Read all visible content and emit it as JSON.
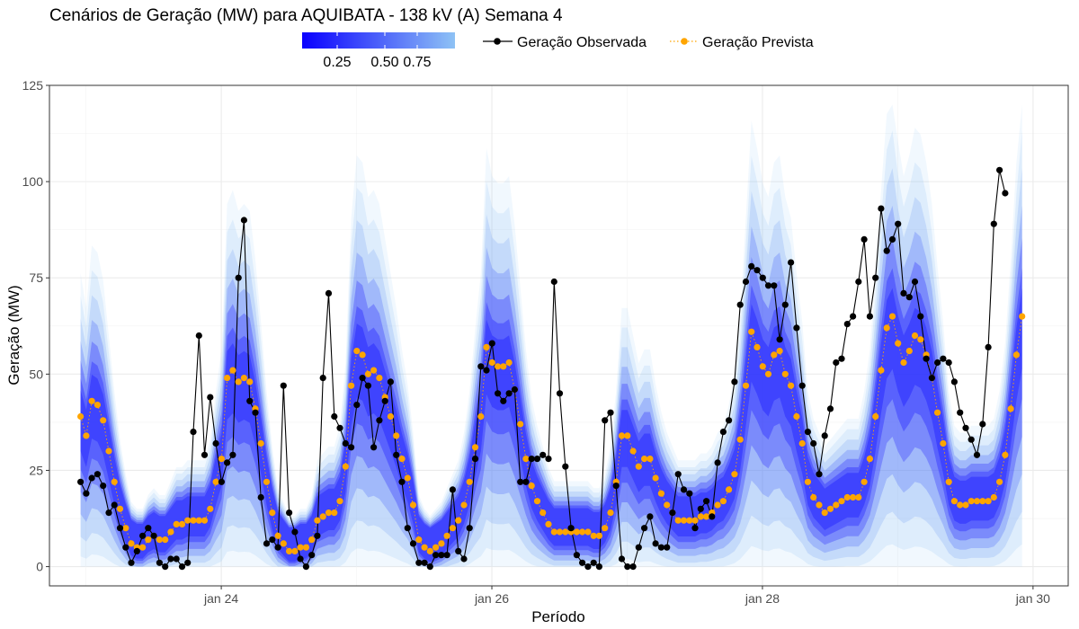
{
  "chart_data": {
    "type": "line",
    "title": "Cenários de Geração (MW) para AQUIBATA - 138 kV (A) Semana 4",
    "xlabel": "Período",
    "ylabel": "Geração (MW)",
    "ylim": [
      -5,
      125
    ],
    "xlim": [
      -0.27,
      7.26
    ],
    "x_unit": "days since jan 23 00:00",
    "x_ticks": [
      {
        "value": 1,
        "label": "jan 24"
      },
      {
        "value": 3,
        "label": "jan 26"
      },
      {
        "value": 5,
        "label": "jan 28"
      },
      {
        "value": 7,
        "label": "jan 30"
      }
    ],
    "y_ticks": [
      0,
      25,
      50,
      75,
      100,
      125
    ],
    "grid": true,
    "legend_position": "top",
    "colorbar": {
      "position": "top-left",
      "ticks": [
        "0.25",
        "0.50",
        "0.75"
      ],
      "color_low": "#0a00ff",
      "color_high": "#8ec2f5"
    },
    "band_color": "#2a2cff",
    "band_cap": 120,
    "series": [
      {
        "name": "Geração Observada",
        "color": "#000000",
        "style": "solid-line-points",
        "x_start": -0.04,
        "x_step": 0.04167,
        "values": [
          22,
          19,
          23,
          24,
          21,
          14,
          16,
          10,
          5,
          1,
          4,
          8,
          10,
          8,
          1,
          0,
          2,
          2,
          0,
          1,
          35,
          60,
          29,
          44,
          32,
          22,
          27,
          29,
          75,
          90,
          43,
          40,
          18,
          6,
          7,
          5,
          47,
          14,
          9,
          2,
          0,
          3,
          8,
          49,
          71,
          39,
          36,
          32,
          31,
          42,
          49,
          47,
          31,
          38,
          43,
          48,
          29,
          22,
          10,
          6,
          1,
          1,
          0,
          3,
          3,
          3,
          20,
          4,
          2,
          10,
          28,
          52,
          51,
          58,
          45,
          43,
          45,
          46,
          22,
          22,
          28,
          28,
          29,
          28,
          74,
          45,
          26,
          10,
          3,
          1,
          0,
          1,
          0,
          38,
          40,
          21,
          2,
          0,
          0,
          5,
          10,
          13,
          6,
          5,
          5,
          14,
          24,
          20,
          19,
          10,
          15,
          17,
          13,
          27,
          35,
          38,
          48,
          68,
          74,
          78,
          77,
          75,
          73,
          73,
          59,
          68,
          79,
          62,
          47,
          35,
          32,
          24,
          34,
          41,
          53,
          54,
          63,
          65,
          74,
          85,
          65,
          75,
          93,
          82,
          85,
          89,
          71,
          70,
          74,
          65,
          54,
          49,
          53,
          54,
          53,
          48,
          40,
          36,
          33,
          29,
          37,
          57,
          89,
          103,
          97
        ]
      },
      {
        "name": "Geração Prevista",
        "color": "#ffa500",
        "style": "dotted-line-points",
        "x_start": -0.04,
        "x_step": 0.04167,
        "values": [
          39,
          34,
          43,
          42,
          38,
          30,
          22,
          15,
          10,
          6,
          5,
          5,
          7,
          8,
          7,
          7,
          9,
          11,
          11,
          12,
          12,
          12,
          12,
          15,
          22,
          28,
          49,
          51,
          48,
          49,
          48,
          41,
          32,
          22,
          14,
          8,
          6,
          4,
          4,
          5,
          5,
          7,
          12,
          13,
          14,
          14,
          17,
          26,
          47,
          56,
          55,
          50,
          51,
          49,
          44,
          39,
          34,
          28,
          23,
          16,
          7,
          5,
          4,
          5,
          6,
          8,
          10,
          12,
          16,
          22,
          31,
          39,
          57,
          53,
          52,
          52,
          53,
          46,
          37,
          28,
          21,
          17,
          14,
          11,
          9,
          9,
          9,
          9,
          9,
          9,
          9,
          8,
          8,
          10,
          14,
          22,
          34,
          34,
          30,
          26,
          28,
          28,
          23,
          19,
          16,
          14,
          12,
          12,
          12,
          12,
          13,
          13,
          14,
          16,
          17,
          20,
          24,
          33,
          47,
          61,
          57,
          52,
          50,
          55,
          56,
          50,
          47,
          39,
          32,
          22,
          18,
          16,
          14,
          15,
          16,
          17,
          18,
          18,
          18,
          22,
          28,
          39,
          51,
          62,
          65,
          58,
          53,
          56,
          60,
          59,
          55,
          49,
          40,
          32,
          22,
          17,
          16,
          16,
          17,
          17,
          17,
          17,
          18,
          22,
          29,
          41,
          55,
          65
        ]
      }
    ]
  }
}
